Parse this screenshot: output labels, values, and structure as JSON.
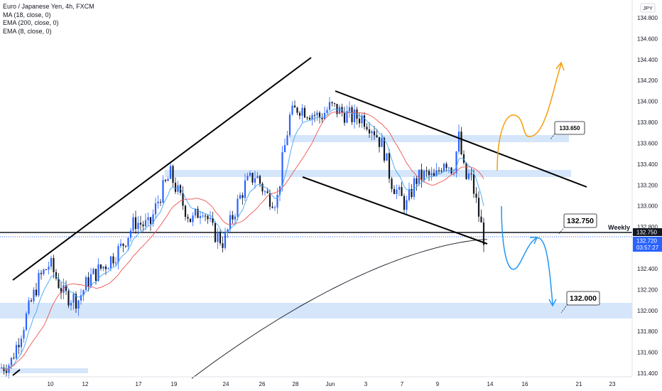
{
  "legend": {
    "title": "Euro / Japanese Yen, 4h, FXCM",
    "lines": [
      "MA (18, close, 0)",
      "EMA (200, close, 0)",
      "EMA (8, close, 0)"
    ]
  },
  "currency_badge": "JPY",
  "labels": {
    "weekly": "Weekly",
    "price_tag_level": "132.750",
    "price_tag_current": "132.720",
    "countdown": "03:57:27",
    "callout_top": "133.650",
    "callout_mid": "132.750",
    "callout_low": "132.000"
  },
  "colors": {
    "up": "#2962ff",
    "down": "#131722",
    "ma": "#ef5350",
    "ema8": "#42a5f5",
    "ema200": "#131722",
    "zone": "#d5e6fb",
    "orange": "#f59e0b",
    "blue_arrow": "#2196f3",
    "tag": "#2962ff"
  },
  "chart_data": {
    "type": "candlestick",
    "instrument": "Euro / Japanese Yen, 4h, FXCM",
    "y_axis": {
      "min": 131.4,
      "max": 134.8,
      "ticks": [
        "131.400",
        "131.600",
        "131.800",
        "132.000",
        "132.200",
        "132.400",
        "132.600",
        "132.800",
        "133.000",
        "133.200",
        "133.400",
        "133.600",
        "133.800",
        "134.000",
        "134.200",
        "134.400",
        "134.600",
        "134.800"
      ]
    },
    "x_axis_ticks": [
      "10",
      "12",
      "17",
      "19",
      "24",
      "26",
      "28",
      "Jun",
      "3",
      "7",
      "9",
      "14",
      "16",
      "21",
      "23"
    ],
    "weekly_level": 132.75,
    "current_price": 132.72,
    "zones": [
      {
        "from": 133.63,
        "to": 133.67
      },
      {
        "from": 133.3,
        "to": 133.34
      },
      {
        "from": 131.93,
        "to": 132.06
      },
      {
        "from": 131.41,
        "to": 131.43
      }
    ],
    "annotations": [
      "133.650",
      "132.750",
      "132.000"
    ],
    "series": [
      {
        "name": "MA (18, close, 0)"
      },
      {
        "name": "EMA (200, close, 0)"
      },
      {
        "name": "EMA (8, close, 0)"
      }
    ]
  }
}
